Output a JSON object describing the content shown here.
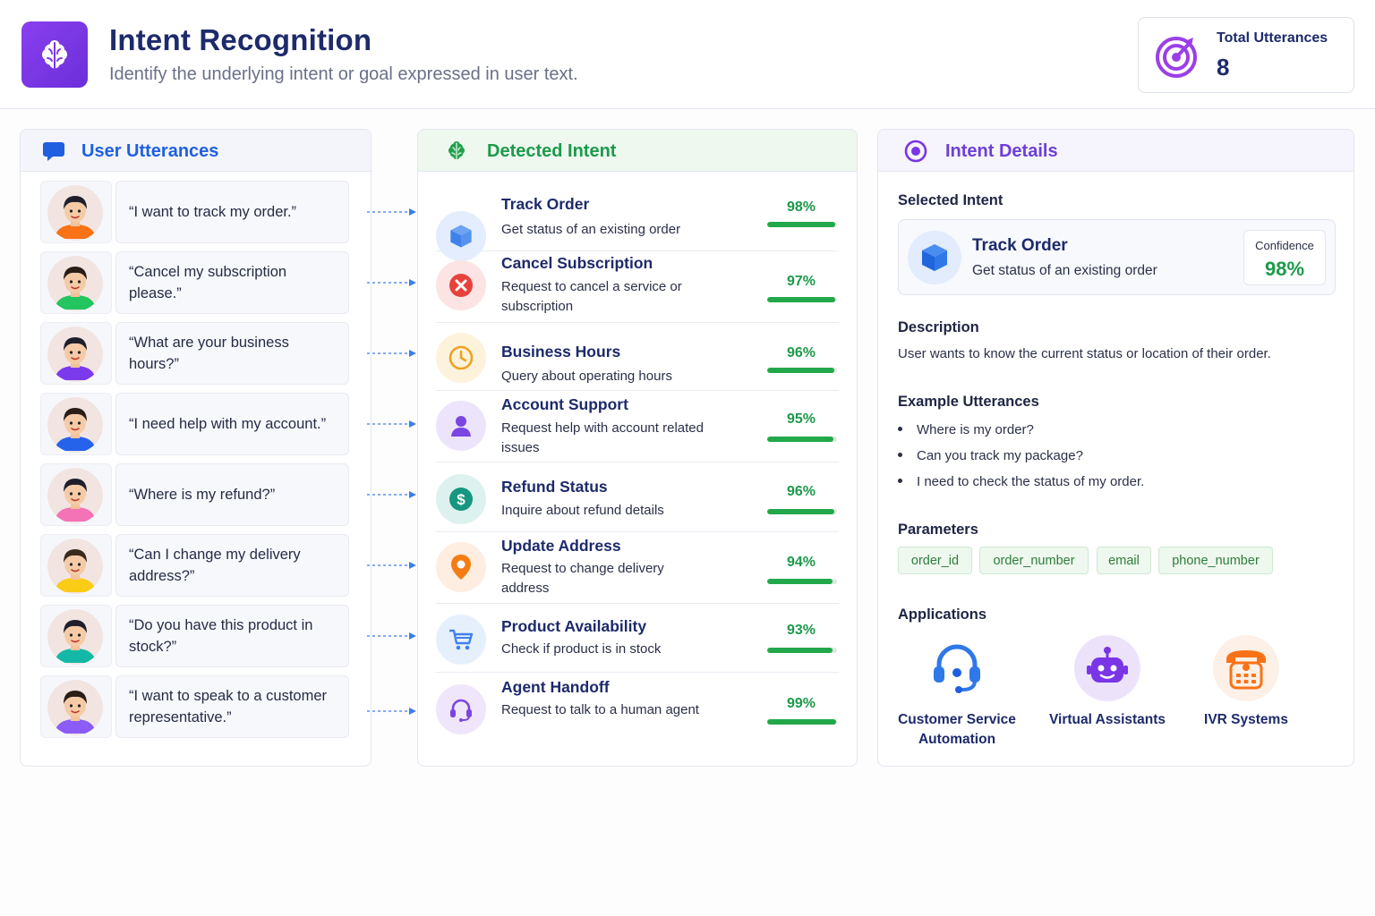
{
  "header": {
    "title": "Intent Recognition",
    "subtitle": "Identify the underlying intent or goal expressed in user text.",
    "logo_icon": "brain-icon",
    "total_label": "Total Utterances",
    "total_value": "8"
  },
  "left_panel": {
    "title": "User Utterances",
    "icon": "chat-bubble-icon",
    "utterances": [
      {
        "text": "“I want to track my order.”",
        "avatar_color": "#f97316"
      },
      {
        "text": "“Cancel my subscription please.”",
        "avatar_color": "#22c55e"
      },
      {
        "text": "“What are your business hours?”",
        "avatar_color": "#7c3aed"
      },
      {
        "text": "“I need help with my account.”",
        "avatar_color": "#2563eb"
      },
      {
        "text": "“Where is my refund?”",
        "avatar_color": "#f472b6"
      },
      {
        "text": "“Can I change my delivery address?”",
        "avatar_color": "#facc15"
      },
      {
        "text": "“Do you have this product in stock?”",
        "avatar_color": "#14b8a6"
      },
      {
        "text": "“I want to speak to a customer representative.”",
        "avatar_color": "#8b5cf6"
      }
    ]
  },
  "middle_panel": {
    "title": "Detected Intent",
    "icon": "brain-icon",
    "intents": [
      {
        "name": "Track Order",
        "desc": "Get status of an existing order",
        "confidence": "98%",
        "value": 0.98,
        "icon": "box-icon"
      },
      {
        "name": "Cancel Subscription",
        "desc": "Request to cancel a service or subscription",
        "confidence": "97%",
        "value": 0.97,
        "icon": "cancel-icon"
      },
      {
        "name": "Business Hours",
        "desc": "Query about operating hours",
        "confidence": "96%",
        "value": 0.96,
        "icon": "clock-icon"
      },
      {
        "name": "Account Support",
        "desc": "Request help with account related issues",
        "confidence": "95%",
        "value": 0.95,
        "icon": "user-icon"
      },
      {
        "name": "Refund Status",
        "desc": "Inquire about refund details",
        "confidence": "96%",
        "value": 0.96,
        "icon": "dollar-icon"
      },
      {
        "name": "Update Address",
        "desc": "Request to change delivery address",
        "confidence": "94%",
        "value": 0.94,
        "icon": "location-pin-icon"
      },
      {
        "name": "Product Availability",
        "desc": "Check if product is in stock",
        "confidence": "93%",
        "value": 0.93,
        "icon": "cart-icon"
      },
      {
        "name": "Agent Handoff",
        "desc": "Request to talk to a human agent",
        "confidence": "99%",
        "value": 0.99,
        "icon": "headset-icon"
      }
    ]
  },
  "right_panel": {
    "title": "Intent Details",
    "icon": "target-circle-icon",
    "selected_label": "Selected Intent",
    "selected_name": "Track Order",
    "selected_desc": "Get status of an existing order",
    "confidence_label": "Confidence",
    "confidence_value": "98%",
    "description_label": "Description",
    "description_text": "User wants to know the current status or location of their order.",
    "examples_label": "Example Utterances",
    "examples": [
      "Where is my order?",
      "Can you track my package?",
      "I need to check the status of my order."
    ],
    "parameters_label": "Parameters",
    "parameters": [
      "order_id",
      "order_number",
      "email",
      "phone_number"
    ],
    "applications_label": "Applications",
    "applications": [
      {
        "label": "Customer Service Automation",
        "icon": "headset-icon"
      },
      {
        "label": "Virtual Assistants",
        "icon": "robot-icon"
      },
      {
        "label": "IVR Systems",
        "icon": "phone-icon"
      }
    ]
  },
  "colors": {
    "brand": "#7a35e6",
    "navy": "#1d2a6b",
    "blue": "#1f5fe0",
    "green": "#1c9a4a",
    "purple": "#6d3fd6"
  }
}
